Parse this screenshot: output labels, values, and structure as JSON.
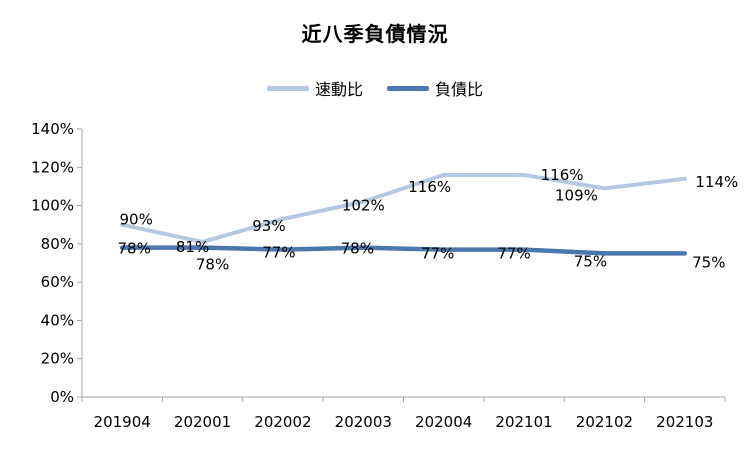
{
  "title": "近八季負債情況",
  "colors": {
    "quick_ratio": "#b6c8e0",
    "debt_ratio": "#4a78ad",
    "axis": "#a6a6a6"
  },
  "legend": [
    {
      "name": "速動比",
      "color": "#b6c8e0"
    },
    {
      "name": "負債比",
      "color": "#4a78ad"
    }
  ],
  "chart_data": {
    "type": "line",
    "title": "近八季負債情況",
    "xlabel": "",
    "ylabel": "",
    "categories": [
      "201904",
      "202001",
      "202002",
      "202003",
      "202004",
      "202101",
      "202102",
      "202103"
    ],
    "ylim": [
      0,
      140
    ],
    "yticks": [
      "0%",
      "20%",
      "40%",
      "60%",
      "80%",
      "100%",
      "120%",
      "140%"
    ],
    "grid": false,
    "legend_position": "top",
    "series": [
      {
        "name": "速動比",
        "color": "#b6c8e0",
        "values": [
          90,
          81,
          93,
          102,
          116,
          116,
          109,
          114
        ],
        "labels": [
          "90%",
          "81%",
          "93%",
          "102%",
          "116%",
          "116%",
          "109%",
          "114%"
        ]
      },
      {
        "name": "負債比",
        "color": "#4a78ad",
        "values": [
          78,
          78,
          77,
          78,
          77,
          77,
          75,
          75
        ],
        "labels": [
          "78%",
          "78%",
          "77%",
          "78%",
          "77%",
          "77%",
          "75%",
          "75%"
        ]
      }
    ]
  }
}
